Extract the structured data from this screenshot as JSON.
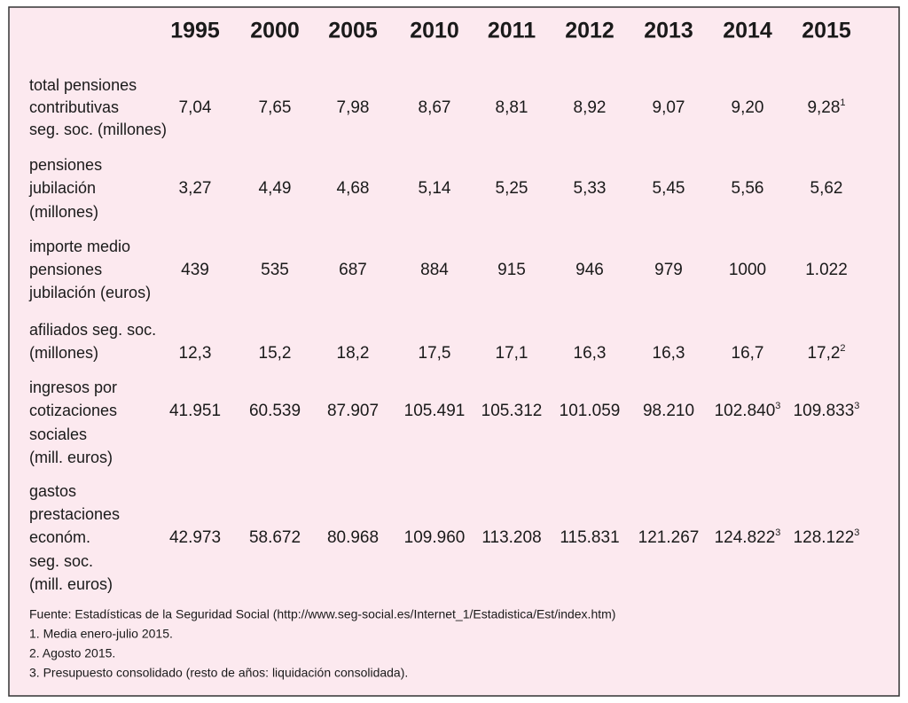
{
  "table": {
    "header": [
      "1995",
      "2000",
      "2005",
      "2010",
      "2011",
      "2012",
      "2013",
      "2014",
      "2015"
    ],
    "rows": [
      {
        "label": [
          "total pensiones",
          "contributivas",
          "seg. soc. (millones)"
        ],
        "cells": [
          "7,04",
          "7,65",
          "7,98",
          "8,67",
          "8,81",
          "8,92",
          "9,07",
          "9,20",
          {
            "text": "9,28",
            "sup": "1"
          }
        ]
      },
      {
        "label": [
          "pensiones",
          "jubilación",
          "(millones)"
        ],
        "cells": [
          "3,27",
          "4,49",
          "4,68",
          "5,14",
          "5,25",
          "5,33",
          "5,45",
          "5,56",
          "5,62"
        ]
      },
      {
        "label": [
          "importe medio",
          "pensiones",
          "jubilación (euros)"
        ],
        "cells": [
          "439",
          "535",
          "687",
          "884",
          "915",
          "946",
          "979",
          "1000",
          "1.022"
        ]
      },
      {
        "label": [
          "afiliados seg. soc.",
          "(millones)"
        ],
        "cells": [
          "12,3",
          "15,2",
          "18,2",
          "17,5",
          "17,1",
          "16,3",
          "16,3",
          "16,7",
          {
            "text": "17,2",
            "sup": "2"
          }
        ]
      },
      {
        "label": [
          "ingresos por",
          "cotizaciones",
          "sociales",
          "(mill. euros)"
        ],
        "cells": [
          "41.951",
          "60.539",
          "87.907",
          "105.491",
          "105.312",
          "101.059",
          "98.210",
          {
            "text": "102.840",
            "sup": "3"
          },
          {
            "text": "109.833",
            "sup": "3"
          }
        ]
      },
      {
        "label": [
          "gastos",
          "prestaciones",
          "económ.",
          "seg. soc.",
          "(mill. euros)"
        ],
        "cells": [
          "42.973",
          "58.672",
          "80.968",
          "109.960",
          "113.208",
          "115.831",
          "121.267",
          {
            "text": "124.822",
            "sup": "3"
          },
          {
            "text": "128.122",
            "sup": "3"
          }
        ]
      }
    ],
    "notes": [
      "Fuente: Estadísticas de la Seguridad Social (http://www.seg-social.es/Internet_1/Estadistica/Est/index.htm)",
      "1. Media enero-julio 2015.",
      "2. Agosto 2015.",
      "3. Presupuesto consolidado (resto de años: liquidación consolidada)."
    ]
  }
}
